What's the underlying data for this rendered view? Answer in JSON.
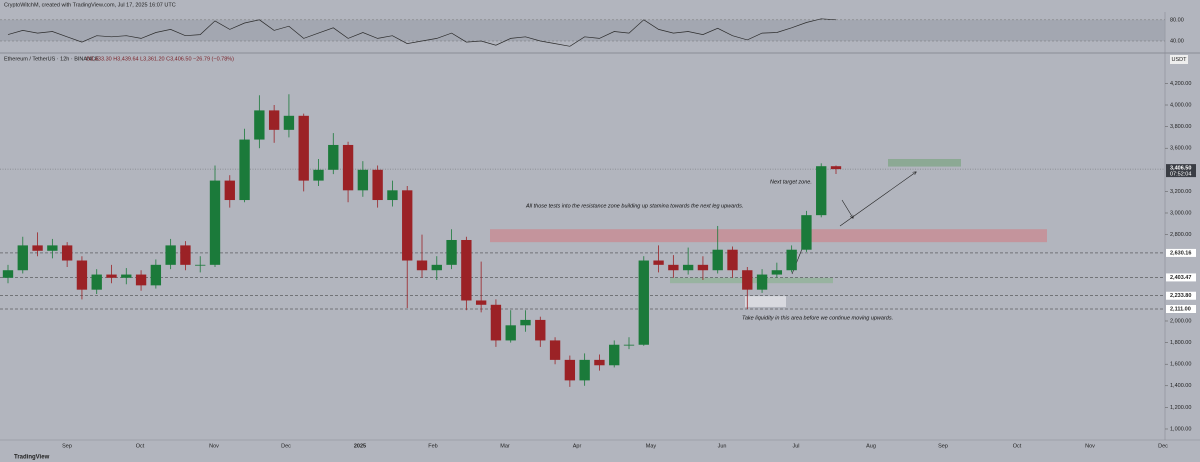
{
  "chart_data": {
    "type": "candlestick",
    "credit": "CryptoWitchM, created with TradingView.com, Jul 17, 2025 16:07 UTC",
    "symbol": "Ethereum / TetherUS · 12h · BINANCE",
    "ohlc_text": "O3,433.30 H3,439.64 L3,361.20 C3,406.50 −26.79 (−0.78%)",
    "currency": "USDT",
    "footer": "TradingView",
    "up_color": "#1b7a3a",
    "down_color": "#9b2226",
    "ylim": [
      898,
      4463
    ],
    "yticks": [
      {
        "value": 4200,
        "label": "4,200.00"
      },
      {
        "value": 4000,
        "label": "4,000.00"
      },
      {
        "value": 3800,
        "label": "3,800.00"
      },
      {
        "value": 3600,
        "label": "3,600.00"
      },
      {
        "value": 3200,
        "label": "3,200.00"
      },
      {
        "value": 3000,
        "label": "3,000.00"
      },
      {
        "value": 2800,
        "label": "2,800.00"
      },
      {
        "value": 2000,
        "label": "2,000.00"
      },
      {
        "value": 1800,
        "label": "1,800.00"
      },
      {
        "value": 1600,
        "label": "1,600.00"
      },
      {
        "value": 1400,
        "label": "1,400.00"
      },
      {
        "value": 1200,
        "label": "1,200.00"
      },
      {
        "value": 1000,
        "label": "1,000.00"
      }
    ],
    "months": [
      "Sep",
      "Oct",
      "Nov",
      "Dec",
      "2025",
      "Feb",
      "Mar",
      "Apr",
      "May",
      "Jun",
      "Jul",
      "Aug",
      "Sep",
      "Oct",
      "Nov",
      "Dec"
    ],
    "open": [
      2400,
      2470,
      2700,
      2650,
      2700,
      2560,
      2290,
      2430,
      2400,
      2430,
      2330,
      2520,
      2700,
      2520,
      2520,
      3300,
      3120,
      3680,
      3950,
      3770,
      3900,
      3300,
      3400,
      3630,
      3210,
      3400,
      3120,
      3210,
      2560,
      2470,
      2520,
      2750,
      2190,
      2150,
      1820,
      1960,
      2010,
      1820,
      1640,
      1450,
      1640,
      1590,
      1780,
      1780,
      2560,
      2520,
      2470,
      2520,
      2470,
      2660,
      2470,
      2290,
      2430,
      2470,
      2660,
      2980,
      3433.3
    ],
    "high": [
      2520,
      2780,
      2820,
      2760,
      2730,
      2600,
      2480,
      2520,
      2490,
      2470,
      2570,
      2760,
      2740,
      2600,
      3440,
      3350,
      3780,
      4090,
      4000,
      4100,
      3920,
      3500,
      3740,
      3660,
      3480,
      3440,
      3300,
      3250,
      2800,
      2600,
      2850,
      2780,
      2550,
      2200,
      2100,
      2100,
      2040,
      1850,
      1680,
      1700,
      1690,
      1820,
      1850,
      2600,
      2700,
      2610,
      2680,
      2600,
      2880,
      2690,
      2500,
      2480,
      2540,
      2700,
      3020,
      3460,
      3439.64
    ],
    "low": [
      2350,
      2440,
      2600,
      2580,
      2500,
      2200,
      2250,
      2350,
      2340,
      2280,
      2300,
      2480,
      2470,
      2450,
      2500,
      3050,
      3100,
      3600,
      3650,
      3700,
      3200,
      3250,
      3360,
      3100,
      3150,
      3050,
      3060,
      2120,
      2400,
      2380,
      2480,
      2100,
      2080,
      1760,
      1800,
      1900,
      1760,
      1600,
      1390,
      1400,
      1540,
      1570,
      1740,
      1770,
      2450,
      2400,
      2430,
      2380,
      2440,
      2400,
      2110,
      2260,
      2400,
      2450,
      2640,
      2960,
      3361.2
    ],
    "close": [
      2470,
      2700,
      2650,
      2700,
      2560,
      2290,
      2430,
      2400,
      2430,
      2330,
      2520,
      2700,
      2520,
      2520,
      3300,
      3120,
      3680,
      3950,
      3770,
      3900,
      3300,
      3400,
      3630,
      3210,
      3400,
      3120,
      3210,
      2560,
      2470,
      2520,
      2750,
      2190,
      2150,
      1820,
      1960,
      2010,
      1820,
      1640,
      1450,
      1640,
      1590,
      1780,
      1780,
      2560,
      2520,
      2470,
      2520,
      2470,
      2660,
      2470,
      2290,
      2430,
      2470,
      2660,
      2980,
      3433.3,
      3406.5
    ],
    "last_price": {
      "value": 3406.5,
      "label": "3,406.50",
      "countdown": "07:52:04"
    },
    "price_lines": [
      {
        "value": 2630.16,
        "label": "2,630.16"
      },
      {
        "value": 2403.47,
        "label": "2,403.47"
      },
      {
        "value": 2233.8,
        "label": "2,233.80"
      },
      {
        "value": 2111.0,
        "label": "2,111.00"
      }
    ],
    "zones": [
      {
        "low": 2730,
        "high": 2850,
        "color": "#c98a90"
      },
      {
        "low": 3430,
        "high": 3500,
        "color": "#7fa585"
      },
      {
        "low": 2350,
        "high": 2400,
        "color": "#8fb396"
      },
      {
        "low": 2130,
        "high": 2230,
        "color": "#e4e5ea"
      }
    ],
    "annotations": [
      "Next target zone.",
      "All those tests into the resistance zone building up stamina towards the next leg upwards.",
      "Take liquidity in this area before we continue moving upwards."
    ],
    "rsi": {
      "color": "#2b2b2b",
      "ylim": [
        23,
        91
      ],
      "yticks": [
        {
          "value": 80,
          "label": "80.00"
        },
        {
          "value": 40,
          "label": "40.00"
        }
      ],
      "values": [
        52,
        60,
        55,
        58,
        48,
        38,
        50,
        48,
        50,
        45,
        56,
        62,
        50,
        52,
        78,
        62,
        74,
        80,
        60,
        68,
        45,
        55,
        65,
        45,
        56,
        45,
        50,
        35,
        40,
        45,
        55,
        38,
        40,
        32,
        45,
        48,
        40,
        35,
        30,
        48,
        45,
        58,
        55,
        80,
        62,
        55,
        58,
        52,
        64,
        50,
        42,
        55,
        56,
        65,
        75,
        82,
        80
      ]
    }
  }
}
